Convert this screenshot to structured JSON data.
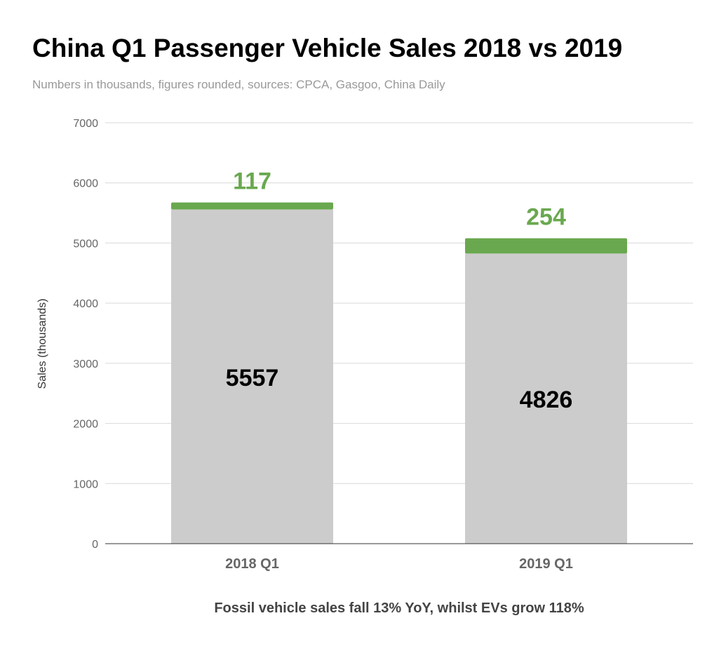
{
  "chart_data": {
    "type": "bar",
    "stacked": true,
    "title": "China Q1 Passenger Vehicle Sales 2018 vs 2019",
    "subtitle": "Numbers in thousands, figures rounded, sources: CPCA, Gasgoo, China Daily",
    "xlabel": "Fossil vehicle sales fall 13% YoY, whilst EVs grow 118%",
    "ylabel": "Sales (thousands)",
    "ylim": [
      0,
      7000
    ],
    "yticks": [
      0,
      1000,
      2000,
      3000,
      4000,
      5000,
      6000,
      7000
    ],
    "grid": true,
    "legend": "none",
    "categories": [
      "2018 Q1",
      "2019 Q1"
    ],
    "series": [
      {
        "values": [
          5557,
          4826
        ],
        "color": "#cccccc",
        "label_color": "#000000"
      },
      {
        "values": [
          117,
          254
        ],
        "color": "#6aa84f",
        "label_color": "#6aa84f"
      }
    ]
  }
}
